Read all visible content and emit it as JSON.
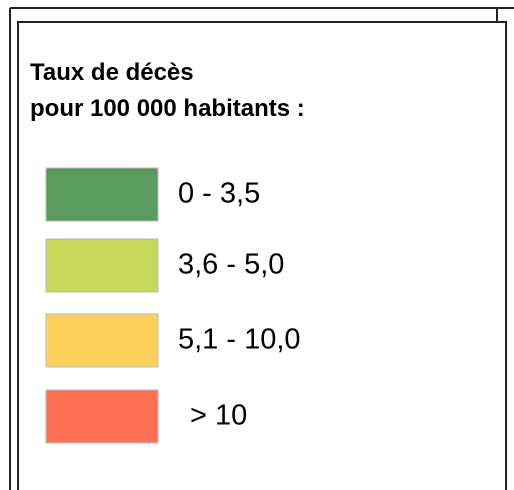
{
  "legend": {
    "title_lines": [
      "Taux de décès",
      "pour 100 000 habitants :"
    ],
    "items": [
      {
        "label": "0 - 3,5",
        "color": "#5b9b5f"
      },
      {
        "label": "3,6 - 5,0",
        "color": "#c6d95b"
      },
      {
        "label": "5,1 - 10,0",
        "color": "#fed15d"
      },
      {
        "label": "> 10",
        "color": "#fd6e53"
      }
    ]
  }
}
